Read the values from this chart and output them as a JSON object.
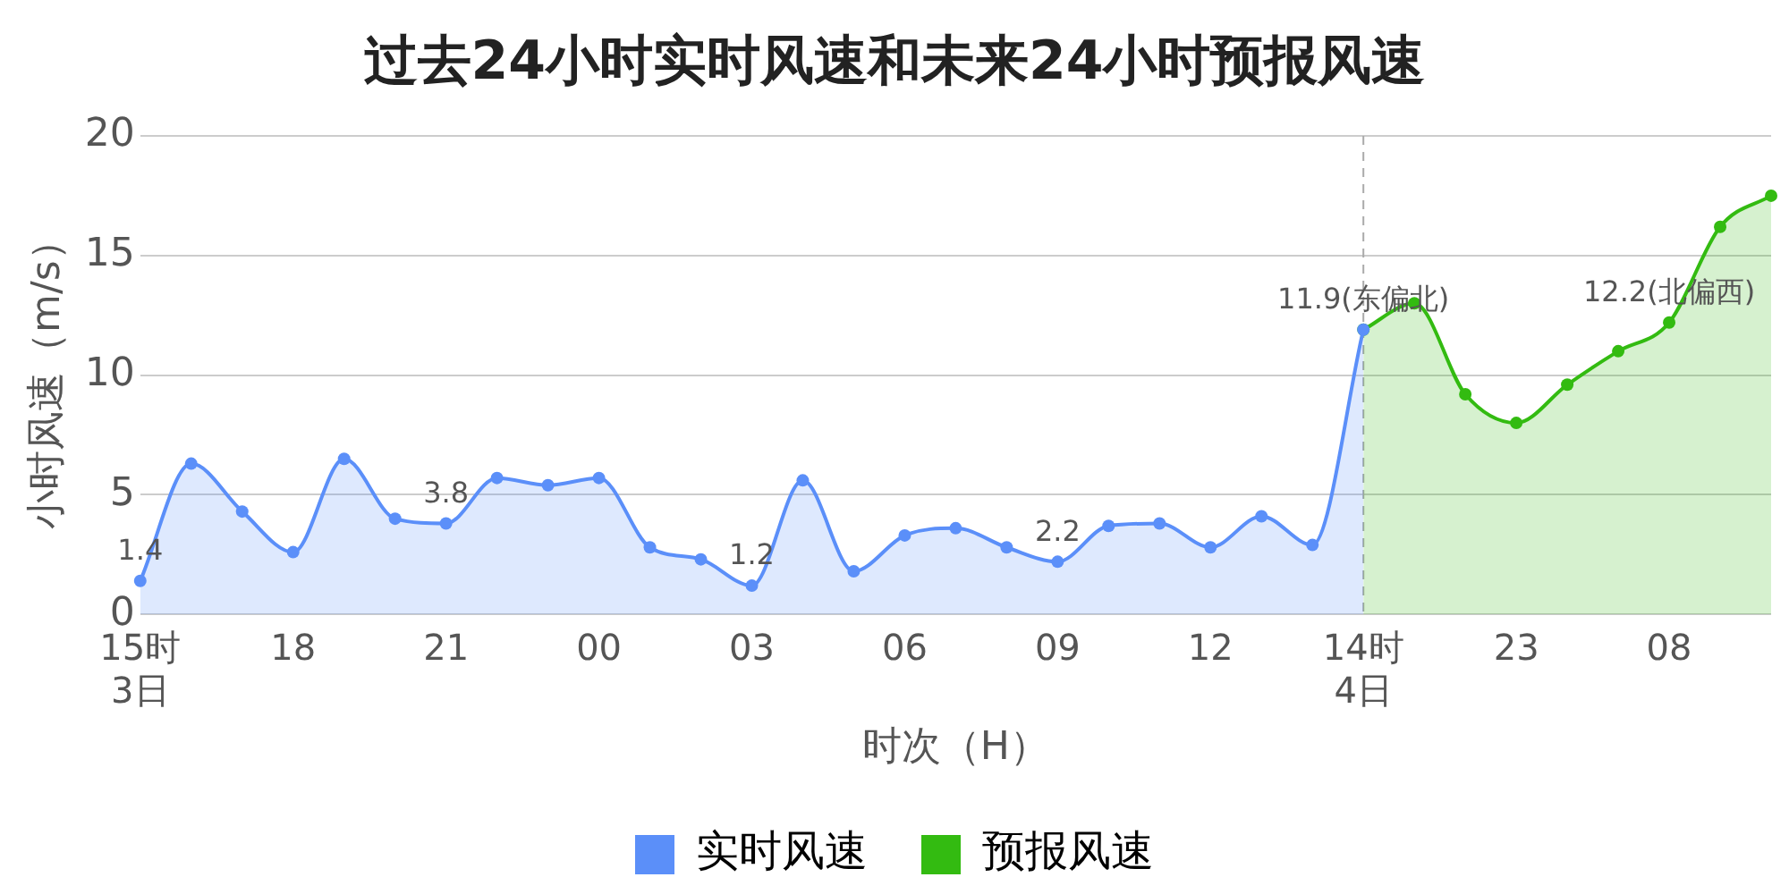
{
  "chart_data": {
    "type": "area",
    "title": "过去24小时实时风速和未来24小时预报风速",
    "xlabel": "时次（H）",
    "ylabel": "小时风速（m/s）",
    "categories": [
      "15时\n3日",
      null,
      null,
      "18",
      null,
      null,
      "21",
      null,
      null,
      "00",
      null,
      null,
      "03",
      null,
      null,
      "06",
      null,
      null,
      "09",
      null,
      null,
      "12",
      null,
      null,
      "14时\n4日",
      null,
      null,
      "23",
      null,
      null,
      "08",
      null,
      null
    ],
    "series": [
      {
        "name": "实时风速",
        "color": "#5b8ff9",
        "values": [
          1.4,
          6.3,
          4.3,
          2.6,
          6.5,
          4.0,
          3.8,
          5.7,
          5.4,
          5.7,
          2.8,
          2.3,
          1.2,
          5.6,
          1.8,
          3.3,
          3.6,
          2.8,
          2.2,
          3.7,
          3.8,
          2.8,
          4.1,
          2.9,
          11.9,
          null,
          null,
          null,
          null,
          null,
          null,
          null,
          null
        ],
        "value_labels": [
          "1.4",
          null,
          null,
          null,
          null,
          null,
          "3.8",
          null,
          null,
          null,
          null,
          null,
          "1.2",
          null,
          null,
          null,
          null,
          null,
          "2.2",
          null,
          null,
          null,
          null,
          null,
          null,
          null,
          null,
          null,
          null,
          null,
          null,
          null,
          null
        ]
      },
      {
        "name": "预报风速",
        "color": "#33bb11",
        "values": [
          null,
          null,
          null,
          null,
          null,
          null,
          null,
          null,
          null,
          null,
          null,
          null,
          null,
          null,
          null,
          null,
          null,
          null,
          null,
          null,
          null,
          null,
          null,
          null,
          11.9,
          13.0,
          9.2,
          8.0,
          9.6,
          11.0,
          12.2,
          16.2,
          17.5
        ],
        "value_labels": [
          null,
          null,
          null,
          null,
          null,
          null,
          null,
          null,
          null,
          null,
          null,
          null,
          null,
          null,
          null,
          null,
          null,
          null,
          null,
          null,
          null,
          null,
          null,
          null,
          "11.9(东偏北)",
          null,
          null,
          null,
          null,
          null,
          "12.2(北偏西)",
          null,
          null
        ]
      }
    ],
    "ylim": [
      0,
      20
    ],
    "yticks": [
      0,
      5,
      10,
      15,
      20
    ],
    "grid": "y",
    "legend": "bottom",
    "marker": "circle",
    "line_style": "solid",
    "ref_lines": [
      {
        "axis": "x",
        "value": "14时\n4日",
        "color": "#aaaaaa",
        "line_style": "dashed"
      }
    ]
  }
}
